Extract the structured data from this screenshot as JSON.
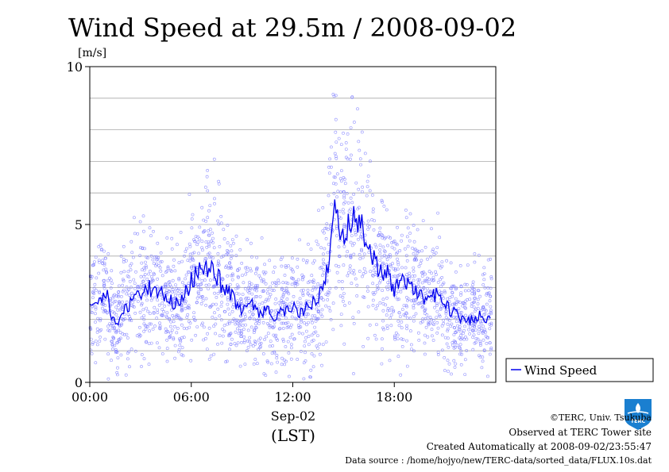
{
  "chart_data": {
    "type": "line",
    "title": "Wind Speed at 29.5m / 2008-09-02",
    "ylabel": "[m/s]",
    "xlabel_date": "Sep-02",
    "xlabel_zone": "(LST)",
    "ylim": [
      0,
      10
    ],
    "xlim_hours": [
      0,
      24
    ],
    "y_ticks": [
      {
        "value": 0,
        "label": "0"
      },
      {
        "value": 5,
        "label": "5"
      },
      {
        "value": 10,
        "label": "10"
      }
    ],
    "x_ticks": [
      {
        "value": 0,
        "label": "00:00"
      },
      {
        "value": 6,
        "label": "06:00"
      },
      {
        "value": 12,
        "label": "12:00"
      },
      {
        "value": 18,
        "label": "18:00"
      }
    ],
    "grid": true,
    "legend_position": "right-bottom",
    "series": [
      {
        "name": "Wind Speed",
        "color": "#0000ee",
        "scatter_color": "#7f7fff",
        "x": [
          0,
          0.5,
          1,
          1.25,
          1.5,
          1.75,
          2,
          2.5,
          3,
          3.5,
          4,
          4.5,
          5,
          5.5,
          6,
          6.5,
          7,
          7.5,
          8,
          8.5,
          9,
          9.5,
          10,
          10.5,
          11,
          11.5,
          12,
          12.5,
          13,
          13.5,
          14,
          14.25,
          14.5,
          14.75,
          15,
          15.5,
          15.75,
          16,
          16.5,
          17,
          17.5,
          18,
          18.5,
          19,
          19.5,
          20,
          20.5,
          21,
          21.5,
          22,
          22.5,
          23,
          23.5
        ],
        "y": [
          2.6,
          2.4,
          2.8,
          2.1,
          1.8,
          2.0,
          2.3,
          2.6,
          2.8,
          3.0,
          2.7,
          2.8,
          2.4,
          2.6,
          3.2,
          3.5,
          3.7,
          3.4,
          2.9,
          2.7,
          2.2,
          2.5,
          2.1,
          2.3,
          2.0,
          2.3,
          2.4,
          2.2,
          2.5,
          2.6,
          3.4,
          4.5,
          6.0,
          4.3,
          4.7,
          5.2,
          5.3,
          5.0,
          4.1,
          3.7,
          3.5,
          3.0,
          3.2,
          3.0,
          2.7,
          2.5,
          2.8,
          2.4,
          2.2,
          2.0,
          2.0,
          2.1,
          2.1
        ]
      }
    ]
  },
  "credits": {
    "copyright": "©TERC, Univ. Tsukuba",
    "observed": "Observed at TERC Tower site",
    "created": "Created Automatically at 2008-09-02/23:55:47",
    "source": "Data source : /home/hojyo/new/TERC-data/sorted_data/FLUX.10s.dat"
  },
  "logo": {
    "text": "TERC",
    "color": "#1a7fd0"
  }
}
